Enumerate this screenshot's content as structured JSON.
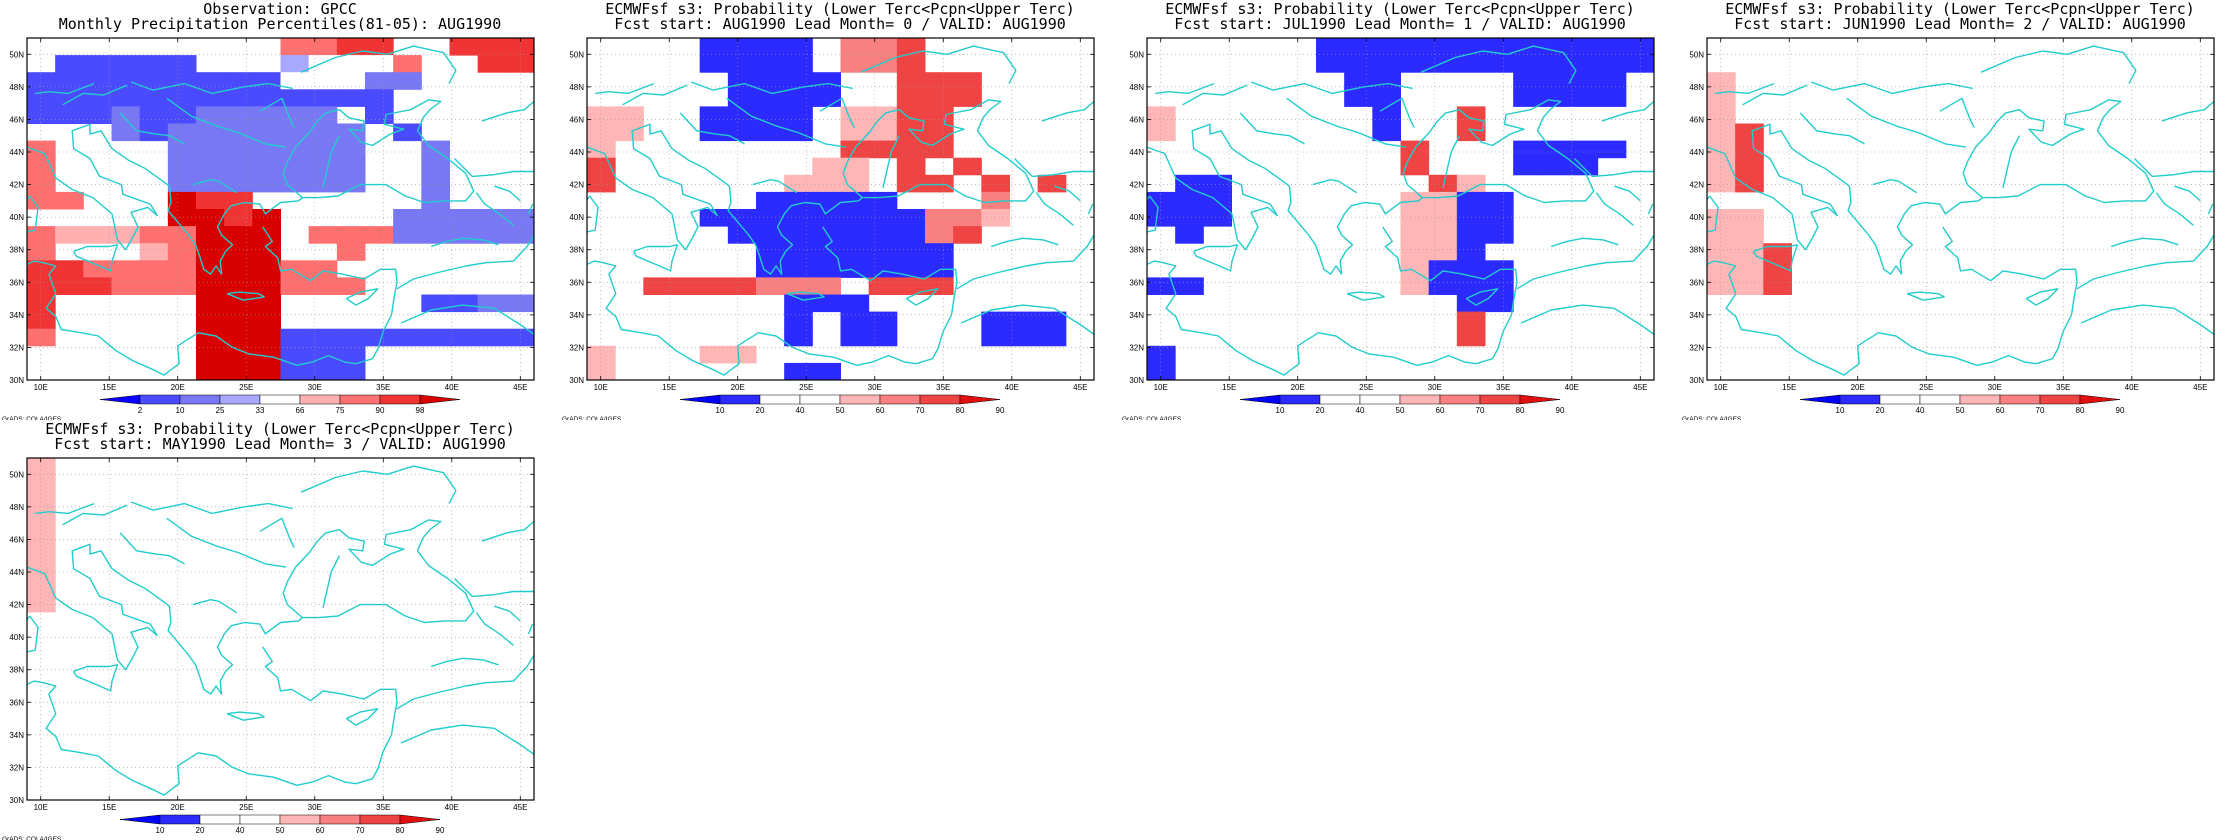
{
  "credit": "GrADS: COLA/IGES",
  "lon_labels": [
    "10E",
    "15E",
    "20E",
    "25E",
    "30E",
    "35E",
    "40E",
    "45E"
  ],
  "lat_labels": [
    "30N",
    "32N",
    "34N",
    "36N",
    "38N",
    "40N",
    "42N",
    "44N",
    "46N",
    "48N",
    "50N"
  ],
  "colors": {
    "coast": "#22cccc",
    "obs_scale": [
      "#0a00ff",
      "#4a4aff",
      "#7878f5",
      "#a8a8ff",
      "#ffffff",
      "#ffb0b0",
      "#ff7070",
      "#f03434",
      "#d90000"
    ],
    "prob_scale": [
      "#0000ff",
      "#2b2bff",
      "#ffffff",
      "#ffffff",
      "#ffb6b6",
      "#f98080",
      "#ef4444",
      "#e01010"
    ]
  },
  "panels": [
    {
      "title1": "Observation: GPCC",
      "title2": "Monthly Precipitation Percentiles(81-05): AUG1990",
      "colorbar_labels": [
        "2",
        "10",
        "25",
        "33",
        "66",
        "75",
        "90",
        "98"
      ],
      "scale": "obs"
    },
    {
      "title1": "ECMWFsf s3: Probability (Lower Terc<Pcpn<Upper Terc)",
      "title2": "Fcst start: AUG1990  Lead Month= 0 / VALID: AUG1990",
      "colorbar_labels": [
        "10",
        "20",
        "40",
        "50",
        "60",
        "70",
        "80",
        "90"
      ],
      "scale": "prob"
    },
    {
      "title1": "ECMWFsf s3: Probability (Lower Terc<Pcpn<Upper Terc)",
      "title2": "Fcst start: JUL1990  Lead Month= 1 / VALID: AUG1990",
      "colorbar_labels": [
        "10",
        "20",
        "40",
        "50",
        "60",
        "70",
        "80",
        "90"
      ],
      "scale": "prob"
    },
    {
      "title1": "ECMWFsf s3: Probability (Lower Terc<Pcpn<Upper Terc)",
      "title2": "Fcst start: JUN1990  Lead Month= 2 / VALID: AUG1990",
      "colorbar_labels": [
        "10",
        "20",
        "40",
        "50",
        "60",
        "70",
        "80",
        "90"
      ],
      "scale": "prob"
    },
    {
      "title1": "ECMWFsf s3: Probability (Lower Terc<Pcpn<Upper Terc)",
      "title2": "Fcst start: MAY1990  Lead Month= 3 / VALID: AUG1990",
      "colorbar_labels": [
        "10",
        "20",
        "40",
        "50",
        "60",
        "70",
        "80",
        "90"
      ],
      "scale": "prob"
    }
  ],
  "grids": [
    [
      "444444000667700777",
      "011111000344460077",
      "111111111444220000",
      "111111111111100000",
      "111211222220100000",
      "000212222222010000",
      "600002222222002000",
      "600002222222002000",
      "600002222222002000",
      "660008770000002000",
      "000008878000022222",
      "655566888066622222",
      "600056888006000000",
      "776666888660000000",
      "777666888666000000",
      "700000888000001122",
      "700000888000000000",
      "600000888111111111",
      "000000888111000000",
      "000000888111000000"
    ],
    [
      "000011110556000000",
      "000011110556000000",
      "000001111006660000",
      "000001111006660000",
      "440011110446600000",
      "440011110446600000",
      "400000000666600000",
      "600000004406060000",
      "600000044406606060",
      "000000111110005000",
      "000011111111554000",
      "000001111111560000",
      "000000111111100000",
      "000000111111100000",
      "006666555066600000",
      "000000011100000000",
      "000000010110001110",
      "000000010110001110",
      "400044000000000000",
      "400000011000000000"
    ],
    [
      "000000111111111111",
      "000000111111111111",
      "000000011000011110",
      "000000011000011110",
      "400000001006000000",
      "400000001006000000",
      "000000000600011110",
      "000000000600011100",
      "011000000064000000",
      "111000000441100000",
      "111000000441100000",
      "010000000441100000",
      "000000000441000000",
      "000000000411100000",
      "110000000411100000",
      "000000000001100000",
      "000000000006000000",
      "000000000006000000",
      "100000000000000000",
      "100000000000000000"
    ],
    [
      "000000000000000000",
      "000000000000000000",
      "400000000000000000",
      "400000000000000000",
      "400000000000000000",
      "460000000000000000",
      "460000000000000000",
      "460000000000000000",
      "460000000000000000",
      "000000000000000000",
      "440000000000000000",
      "440000000000000000",
      "446000000000000000",
      "446000000000000000",
      "446000000000000000",
      "000000000000000000",
      "000000000000000000",
      "000000000000000000",
      "000000000000000000",
      "000000000000000000"
    ],
    [
      "400000000000000000",
      "400000000000000000",
      "400000000000000000",
      "400000000000000000",
      "400000000000000000",
      "400000000000000000",
      "400000000000000000",
      "400000000000000000",
      "400000000000000000",
      "000000000000000000",
      "000000000000000000",
      "000000000000000000",
      "000000000000000000",
      "000000000000000000",
      "000000000000000000",
      "000000000000000000",
      "000000000000000000",
      "000000000000000000",
      "000000000000000000",
      "000000000000000000"
    ]
  ]
}
